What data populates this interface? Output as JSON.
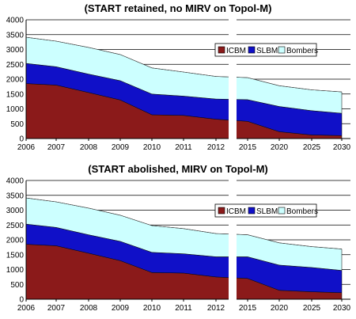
{
  "chart_data": [
    {
      "type": "area",
      "stacked": true,
      "title": "(START retained, no MIRV on Topol-M)",
      "categories": [
        "2006",
        "2007",
        "2008",
        "2009",
        "2010",
        "2011",
        "2012",
        "2015",
        "2020",
        "2025",
        "2030"
      ],
      "ylim": [
        0,
        4000
      ],
      "yticks": [
        "0",
        "500",
        "1000",
        "1500",
        "2000",
        "2500",
        "3000",
        "3500",
        "4000"
      ],
      "grid": true,
      "legend_position": "top-right",
      "axis_break_between": [
        "2012",
        "2015"
      ],
      "series": [
        {
          "name": "ICBM",
          "color": "#8B1A1A",
          "values": [
            1850,
            1800,
            1550,
            1300,
            800,
            780,
            650,
            580,
            230,
            120,
            100
          ]
        },
        {
          "name": "SLBM",
          "color": "#1010C8",
          "values": [
            680,
            620,
            620,
            650,
            700,
            650,
            680,
            730,
            850,
            820,
            750
          ]
        },
        {
          "name": "Bombers",
          "color": "#CCFFFF",
          "values": [
            880,
            860,
            900,
            880,
            880,
            810,
            760,
            740,
            700,
            700,
            720
          ]
        }
      ]
    },
    {
      "type": "area",
      "stacked": true,
      "title": "(START abolished, MIRV on Topol-M)",
      "categories": [
        "2006",
        "2007",
        "2008",
        "2009",
        "2010",
        "2011",
        "2012",
        "2015",
        "2020",
        "2025",
        "2030"
      ],
      "ylim": [
        0,
        4000
      ],
      "yticks": [
        "0",
        "500",
        "1000",
        "1500",
        "2000",
        "2500",
        "3000",
        "3500",
        "4000"
      ],
      "grid": true,
      "legend_position": "top-right",
      "axis_break_between": [
        "2012",
        "2015"
      ],
      "series": [
        {
          "name": "ICBM",
          "color": "#8B1A1A",
          "values": [
            1850,
            1800,
            1550,
            1300,
            900,
            880,
            750,
            700,
            300,
            250,
            220
          ]
        },
        {
          "name": "SLBM",
          "color": "#1010C8",
          "values": [
            680,
            620,
            620,
            650,
            680,
            650,
            680,
            730,
            850,
            820,
            750
          ]
        },
        {
          "name": "Bombers",
          "color": "#CCFFFF",
          "values": [
            880,
            860,
            900,
            880,
            900,
            850,
            780,
            740,
            750,
            700,
            720
          ]
        }
      ]
    }
  ]
}
